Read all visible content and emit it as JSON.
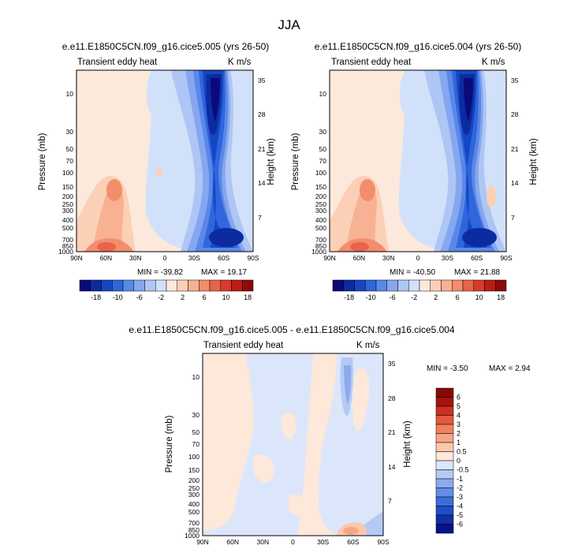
{
  "title": "JJA",
  "colors": {
    "h_scale": [
      "#0a0a7a",
      "#0d2ba0",
      "#1547c4",
      "#2f66dd",
      "#5a88e8",
      "#86a7ef",
      "#aec6f5",
      "#d2e1fa",
      "#fde9dc",
      "#fcd0b6",
      "#f9b193",
      "#f38d6c",
      "#e9634a",
      "#d83a2b",
      "#bb1c18",
      "#8e0a0c"
    ],
    "d_scale": [
      "#08128a",
      "#112fa8",
      "#1e4fc8",
      "#3a6ede",
      "#648ee6",
      "#8eaaee",
      "#b5c9f5",
      "#dbe6fb",
      "#fde8da",
      "#fbc8ad",
      "#f7a685",
      "#f0825f",
      "#e45a3d",
      "#cd3020",
      "#a7130f",
      "#8a0806"
    ]
  },
  "panel_top_left": {
    "title": "e.e11.E1850C5CN.f09_g16.cice5.005 (yrs 26-50)",
    "variable": "Transient eddy heat",
    "units": "K m/s",
    "min_label": "MIN = -39.82",
    "max_label": "MAX = 19.17"
  },
  "panel_top_right": {
    "title": "e.e11.E1850C5CN.f09_g16.cice5.004 (yrs 26-50)",
    "variable": "Transient eddy heat",
    "units": "K m/s",
    "min_label": "MIN = -40.50",
    "max_label": "MAX = 21.88"
  },
  "panel_diff": {
    "title": "e.e11.E1850C5CN.f09_g16.cice5.005 - e.e11.E1850C5CN.f09_g16.cice5.004",
    "variable": "Transient eddy heat",
    "units": "K m/s",
    "min_label": "MIN = -3.50",
    "max_label": "MAX =  2.94"
  },
  "chart_data": [
    {
      "type": "heatmap",
      "panel": "top-left",
      "title": "e.e11.E1850C5CN.f09_g16.cice5.005 (yrs 26-50)",
      "xlabel": "",
      "ylabel": "Pressure (mb)",
      "y2label": "Height (km)",
      "x_ticks": [
        "90N",
        "60N",
        "30N",
        "0",
        "30S",
        "60S",
        "90S"
      ],
      "y_ticks": [
        "10",
        "30",
        "50",
        "70",
        "100",
        "150",
        "200",
        "250",
        "300",
        "400",
        "500",
        "700",
        "850",
        "1000"
      ],
      "y2_ticks": [
        "35",
        "28",
        "21",
        "14",
        "7"
      ],
      "contour_levels": [
        "-18",
        "-10",
        "-6",
        "-2",
        "2",
        "6",
        "10",
        "18"
      ],
      "min": -39.82,
      "max": 19.17
    },
    {
      "type": "heatmap",
      "panel": "top-right",
      "title": "e.e11.E1850C5CN.f09_g16.cice5.004 (yrs 26-50)",
      "xlabel": "",
      "ylabel": "Pressure (mb)",
      "y2label": "Height (km)",
      "x_ticks": [
        "90N",
        "60N",
        "30N",
        "0",
        "30S",
        "60S",
        "90S"
      ],
      "y_ticks": [
        "10",
        "30",
        "50",
        "70",
        "100",
        "150",
        "200",
        "250",
        "300",
        "400",
        "500",
        "700",
        "850",
        "1000"
      ],
      "y2_ticks": [
        "35",
        "28",
        "21",
        "14",
        "7"
      ],
      "contour_levels": [
        "-18",
        "-10",
        "-6",
        "-2",
        "2",
        "6",
        "10",
        "18"
      ],
      "min": -40.5,
      "max": 21.88
    },
    {
      "type": "heatmap",
      "panel": "bottom-center",
      "title": "e.e11.E1850C5CN.f09_g16.cice5.005 - e.e11.E1850C5CN.f09_g16.cice5.004",
      "xlabel": "",
      "ylabel": "Pressure (mb)",
      "y2label": "Height (km)",
      "x_ticks": [
        "90N",
        "60N",
        "30N",
        "0",
        "30S",
        "60S",
        "90S"
      ],
      "y_ticks": [
        "10",
        "30",
        "50",
        "70",
        "100",
        "150",
        "200",
        "250",
        "300",
        "400",
        "500",
        "700",
        "850",
        "1000"
      ],
      "y2_ticks": [
        "35",
        "28",
        "21",
        "14",
        "7"
      ],
      "contour_levels": [
        "6",
        "5",
        "4",
        "3",
        "2",
        "1",
        "0.5",
        "0",
        "-0.5",
        "-1",
        "-2",
        "-3",
        "-4",
        "-5",
        "-6"
      ],
      "min": -3.5,
      "max": 2.94
    }
  ]
}
